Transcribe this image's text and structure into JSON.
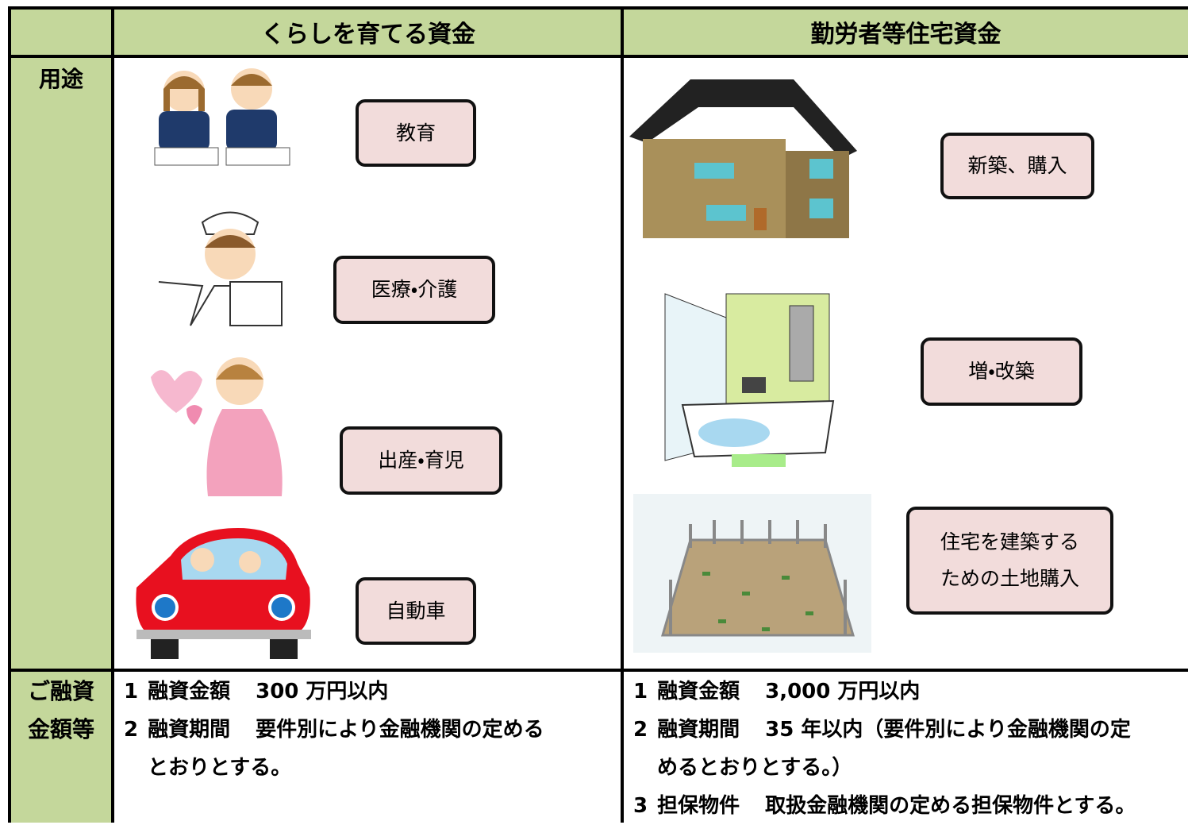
{
  "table": {
    "headers": [
      "くらしを育てる資金",
      "勤労者等住宅資金"
    ],
    "rows": [
      {
        "label": [
          "用途"
        ],
        "left": [
          "教育",
          "医療・介護",
          "出産・育児",
          "自動車"
        ],
        "right": [
          [
            "新築、購入"
          ],
          [
            "増・改築"
          ],
          [
            "住宅を建築する",
            "ための土地購入"
          ]
        ]
      },
      {
        "label": [
          "ご融資",
          "金額等"
        ],
        "left": [
          {
            "num": "1",
            "head": "融資金額",
            "lines": [
              "300 万円以内"
            ]
          },
          {
            "num": "2",
            "head": "融資期間",
            "lines": [
              "要件別により金融機関の定める",
              "とおりとする。"
            ]
          }
        ],
        "right": [
          {
            "num": "1",
            "head": "融資金額",
            "lines": [
              "3,000 万円以内"
            ]
          },
          {
            "num": "2",
            "head": "融資期間",
            "lines": [
              "35 年以内（要件別により金融機関の定",
              "めるとおりとする。）"
            ]
          },
          {
            "num": "3",
            "head": "担保物件",
            "lines": [
              "取扱金融機関の定める担保物件とする。"
            ]
          }
        ]
      }
    ]
  }
}
